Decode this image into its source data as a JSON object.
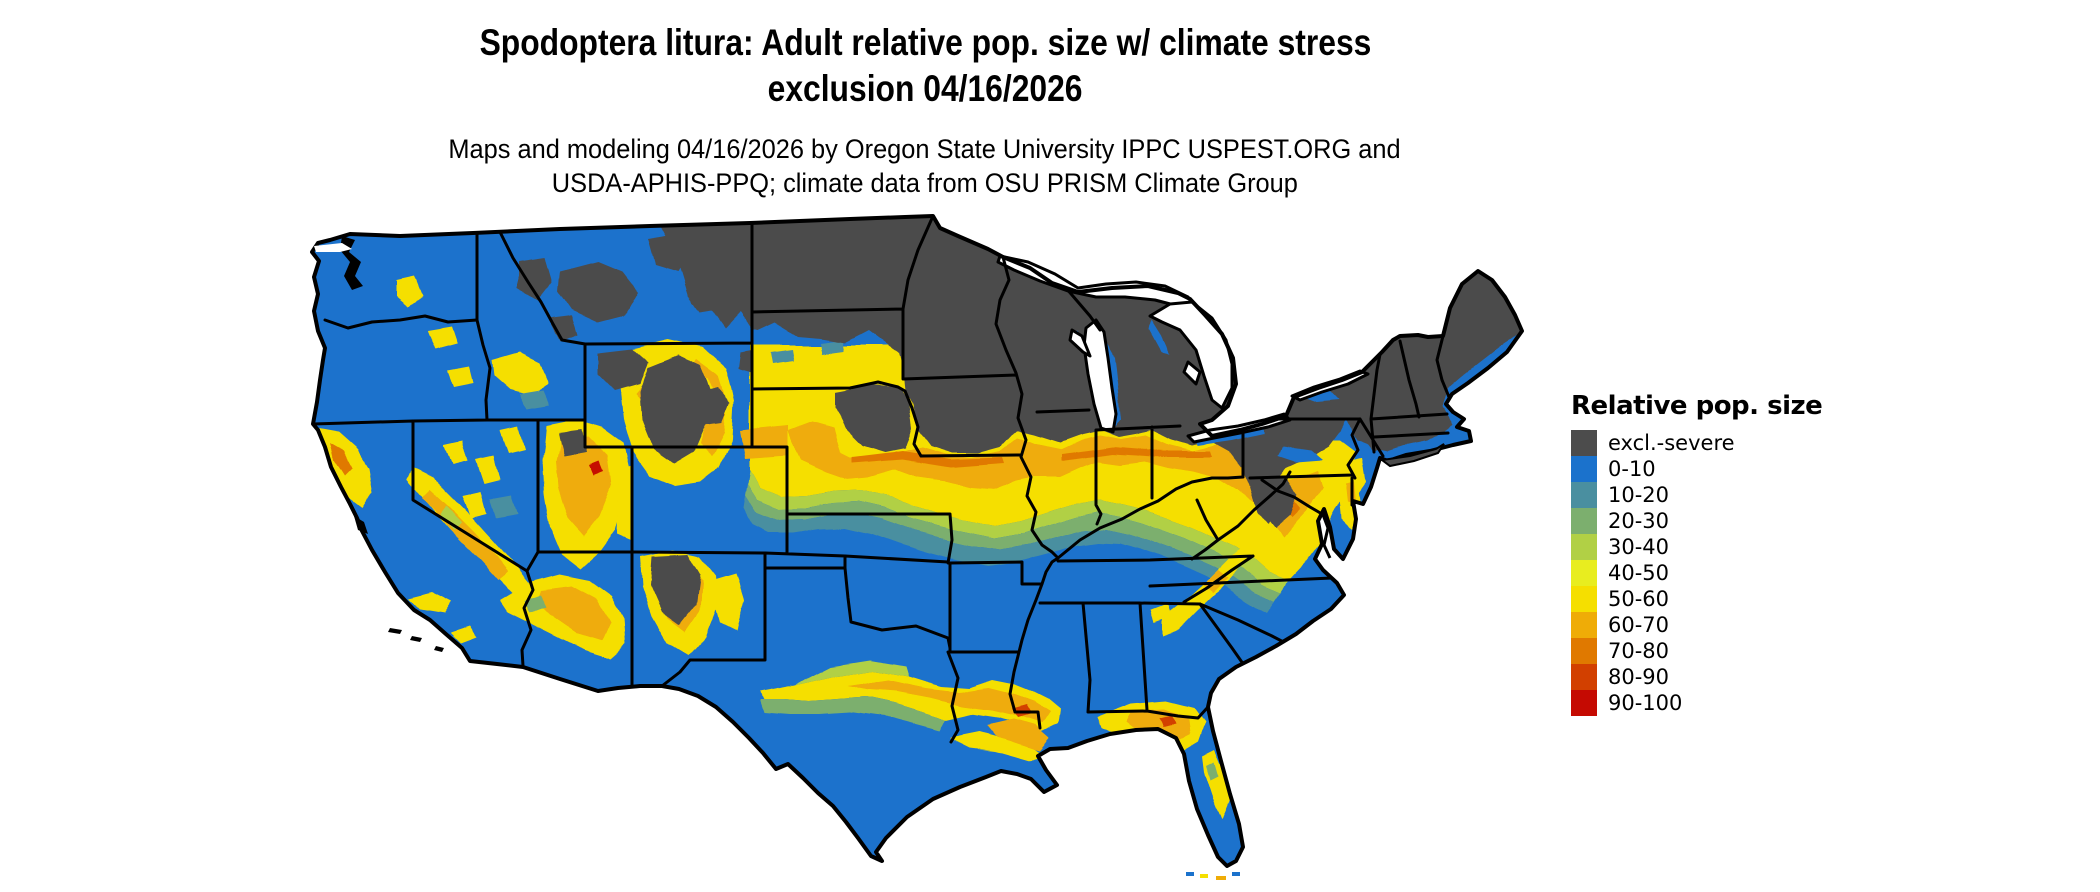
{
  "title": {
    "line1": "Spodoptera litura: Adult relative pop. size w/ climate stress",
    "line2": "exclusion 04/16/2026"
  },
  "subtitle": {
    "line1": "Maps and modeling 04/16/2026 by Oregon State University IPPC USPEST.ORG and",
    "line2": "USDA-APHIS-PPQ; climate data from OSU PRISM Climate Group"
  },
  "legend": {
    "title": "Relative pop. size",
    "items": [
      {
        "label": "excl.-severe",
        "color": "#4C4C4C"
      },
      {
        "label": "0-10",
        "color": "#1B72CC"
      },
      {
        "label": "10-20",
        "color": "#4A8FA0"
      },
      {
        "label": "20-30",
        "color": "#7CAF6E"
      },
      {
        "label": "30-40",
        "color": "#B1D045"
      },
      {
        "label": "40-50",
        "color": "#E8ED1F"
      },
      {
        "label": "50-60",
        "color": "#F5DF00"
      },
      {
        "label": "60-70",
        "color": "#EFAC07"
      },
      {
        "label": "70-80",
        "color": "#E07900"
      },
      {
        "label": "80-90",
        "color": "#D24000"
      },
      {
        "label": "90-100",
        "color": "#C50A02"
      }
    ]
  },
  "map": {
    "region": "Contiguous United States",
    "kind": "raster risk map with state boundaries",
    "border_color": "#000000",
    "water_color": "#ffffff"
  }
}
